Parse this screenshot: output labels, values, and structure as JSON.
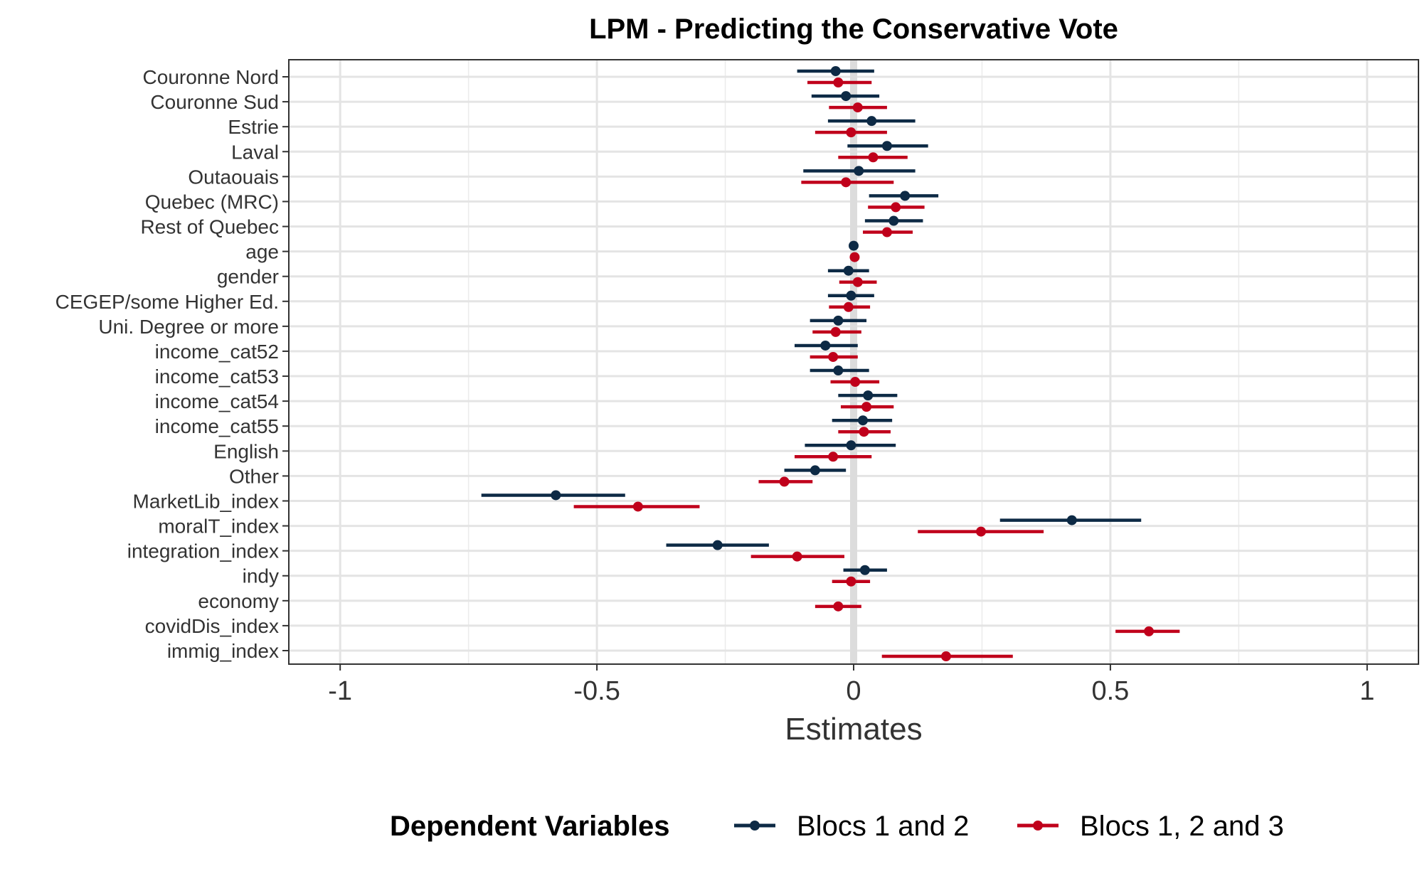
{
  "chart_data": {
    "type": "coefficient-plot",
    "title": "LPM - Predicting the Conservative Vote",
    "xlabel": "Estimates",
    "ylabel": "",
    "xlim": [
      -1.1,
      1.1
    ],
    "x_ticks": [
      -1,
      -0.5,
      0,
      0.5,
      1
    ],
    "x_tick_labels": [
      "-1",
      "-0.5",
      "0",
      "0.5",
      "1"
    ],
    "grid": true,
    "legend_position": "bottom",
    "legend_title": "Dependent Variables",
    "terms": [
      "Couronne Nord",
      "Couronne Sud",
      "Estrie",
      "Laval",
      "Outaouais",
      "Quebec (MRC)",
      "Rest of Quebec",
      "age",
      "gender",
      "CEGEP/some Higher Ed.",
      "Uni. Degree or more",
      "income_cat52",
      "income_cat53",
      "income_cat54",
      "income_cat55",
      "English",
      "Other",
      "MarketLib_index",
      "moralT_index",
      "integration_index",
      "indy",
      "economy",
      "covidDis_index",
      "immig_index"
    ],
    "series": [
      {
        "name": "Blocs 1 and 2",
        "color": "#0d2a45",
        "estimates": [
          -0.035,
          -0.015,
          0.035,
          0.065,
          0.01,
          0.1,
          0.078,
          0.0,
          -0.01,
          -0.005,
          -0.03,
          -0.055,
          -0.03,
          0.028,
          0.018,
          -0.005,
          -0.075,
          -0.58,
          0.425,
          -0.265,
          0.022,
          null,
          null,
          null
        ],
        "ci_low": [
          -0.11,
          -0.082,
          -0.05,
          -0.012,
          -0.098,
          0.03,
          0.022,
          -0.002,
          -0.05,
          -0.05,
          -0.085,
          -0.115,
          -0.085,
          -0.03,
          -0.042,
          -0.095,
          -0.135,
          -0.725,
          0.285,
          -0.365,
          -0.02,
          null,
          null,
          null
        ],
        "ci_high": [
          0.04,
          0.05,
          0.12,
          0.145,
          0.12,
          0.165,
          0.135,
          0.002,
          0.03,
          0.04,
          0.025,
          0.008,
          0.03,
          0.085,
          0.075,
          0.082,
          -0.015,
          -0.445,
          0.56,
          -0.165,
          0.065,
          null,
          null,
          null
        ]
      },
      {
        "name": "Blocs 1, 2 and 3",
        "color": "#c0001b",
        "estimates": [
          -0.03,
          0.008,
          -0.005,
          0.038,
          -0.015,
          0.082,
          0.065,
          0.002,
          0.008,
          -0.01,
          -0.035,
          -0.04,
          0.003,
          0.025,
          0.02,
          -0.04,
          -0.135,
          -0.42,
          0.248,
          -0.11,
          -0.005,
          -0.03,
          0.575,
          0.18
        ],
        "ci_low": [
          -0.09,
          -0.048,
          -0.075,
          -0.03,
          -0.102,
          0.028,
          0.018,
          0.0,
          -0.028,
          -0.048,
          -0.08,
          -0.085,
          -0.045,
          -0.025,
          -0.03,
          -0.115,
          -0.185,
          -0.545,
          0.125,
          -0.2,
          -0.042,
          -0.075,
          0.51,
          0.055
        ],
        "ci_high": [
          0.035,
          0.065,
          0.065,
          0.105,
          0.078,
          0.138,
          0.115,
          0.004,
          0.045,
          0.032,
          0.015,
          0.008,
          0.05,
          0.078,
          0.072,
          0.035,
          -0.08,
          -0.3,
          0.37,
          -0.018,
          0.032,
          0.015,
          0.635,
          0.31
        ]
      }
    ]
  }
}
